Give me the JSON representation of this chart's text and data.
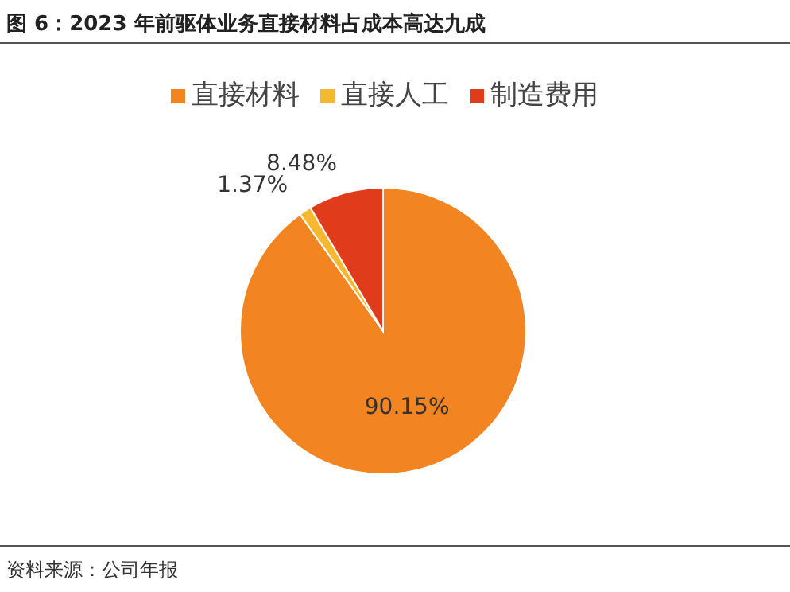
{
  "chart_data": {
    "type": "pie",
    "title": "图 6：2023 年前驱体业务直接材料占成本高达九成",
    "categories": [
      "直接材料",
      "直接人工",
      "制造费用"
    ],
    "values": [
      90.15,
      1.37,
      8.48
    ],
    "colors": [
      "#f28522",
      "#f5b82e",
      "#e03c1c"
    ],
    "value_labels": [
      "90.15%",
      "1.37%",
      "8.48%"
    ],
    "legend": "top",
    "annotations": [
      "资料来源：公司年报"
    ]
  }
}
